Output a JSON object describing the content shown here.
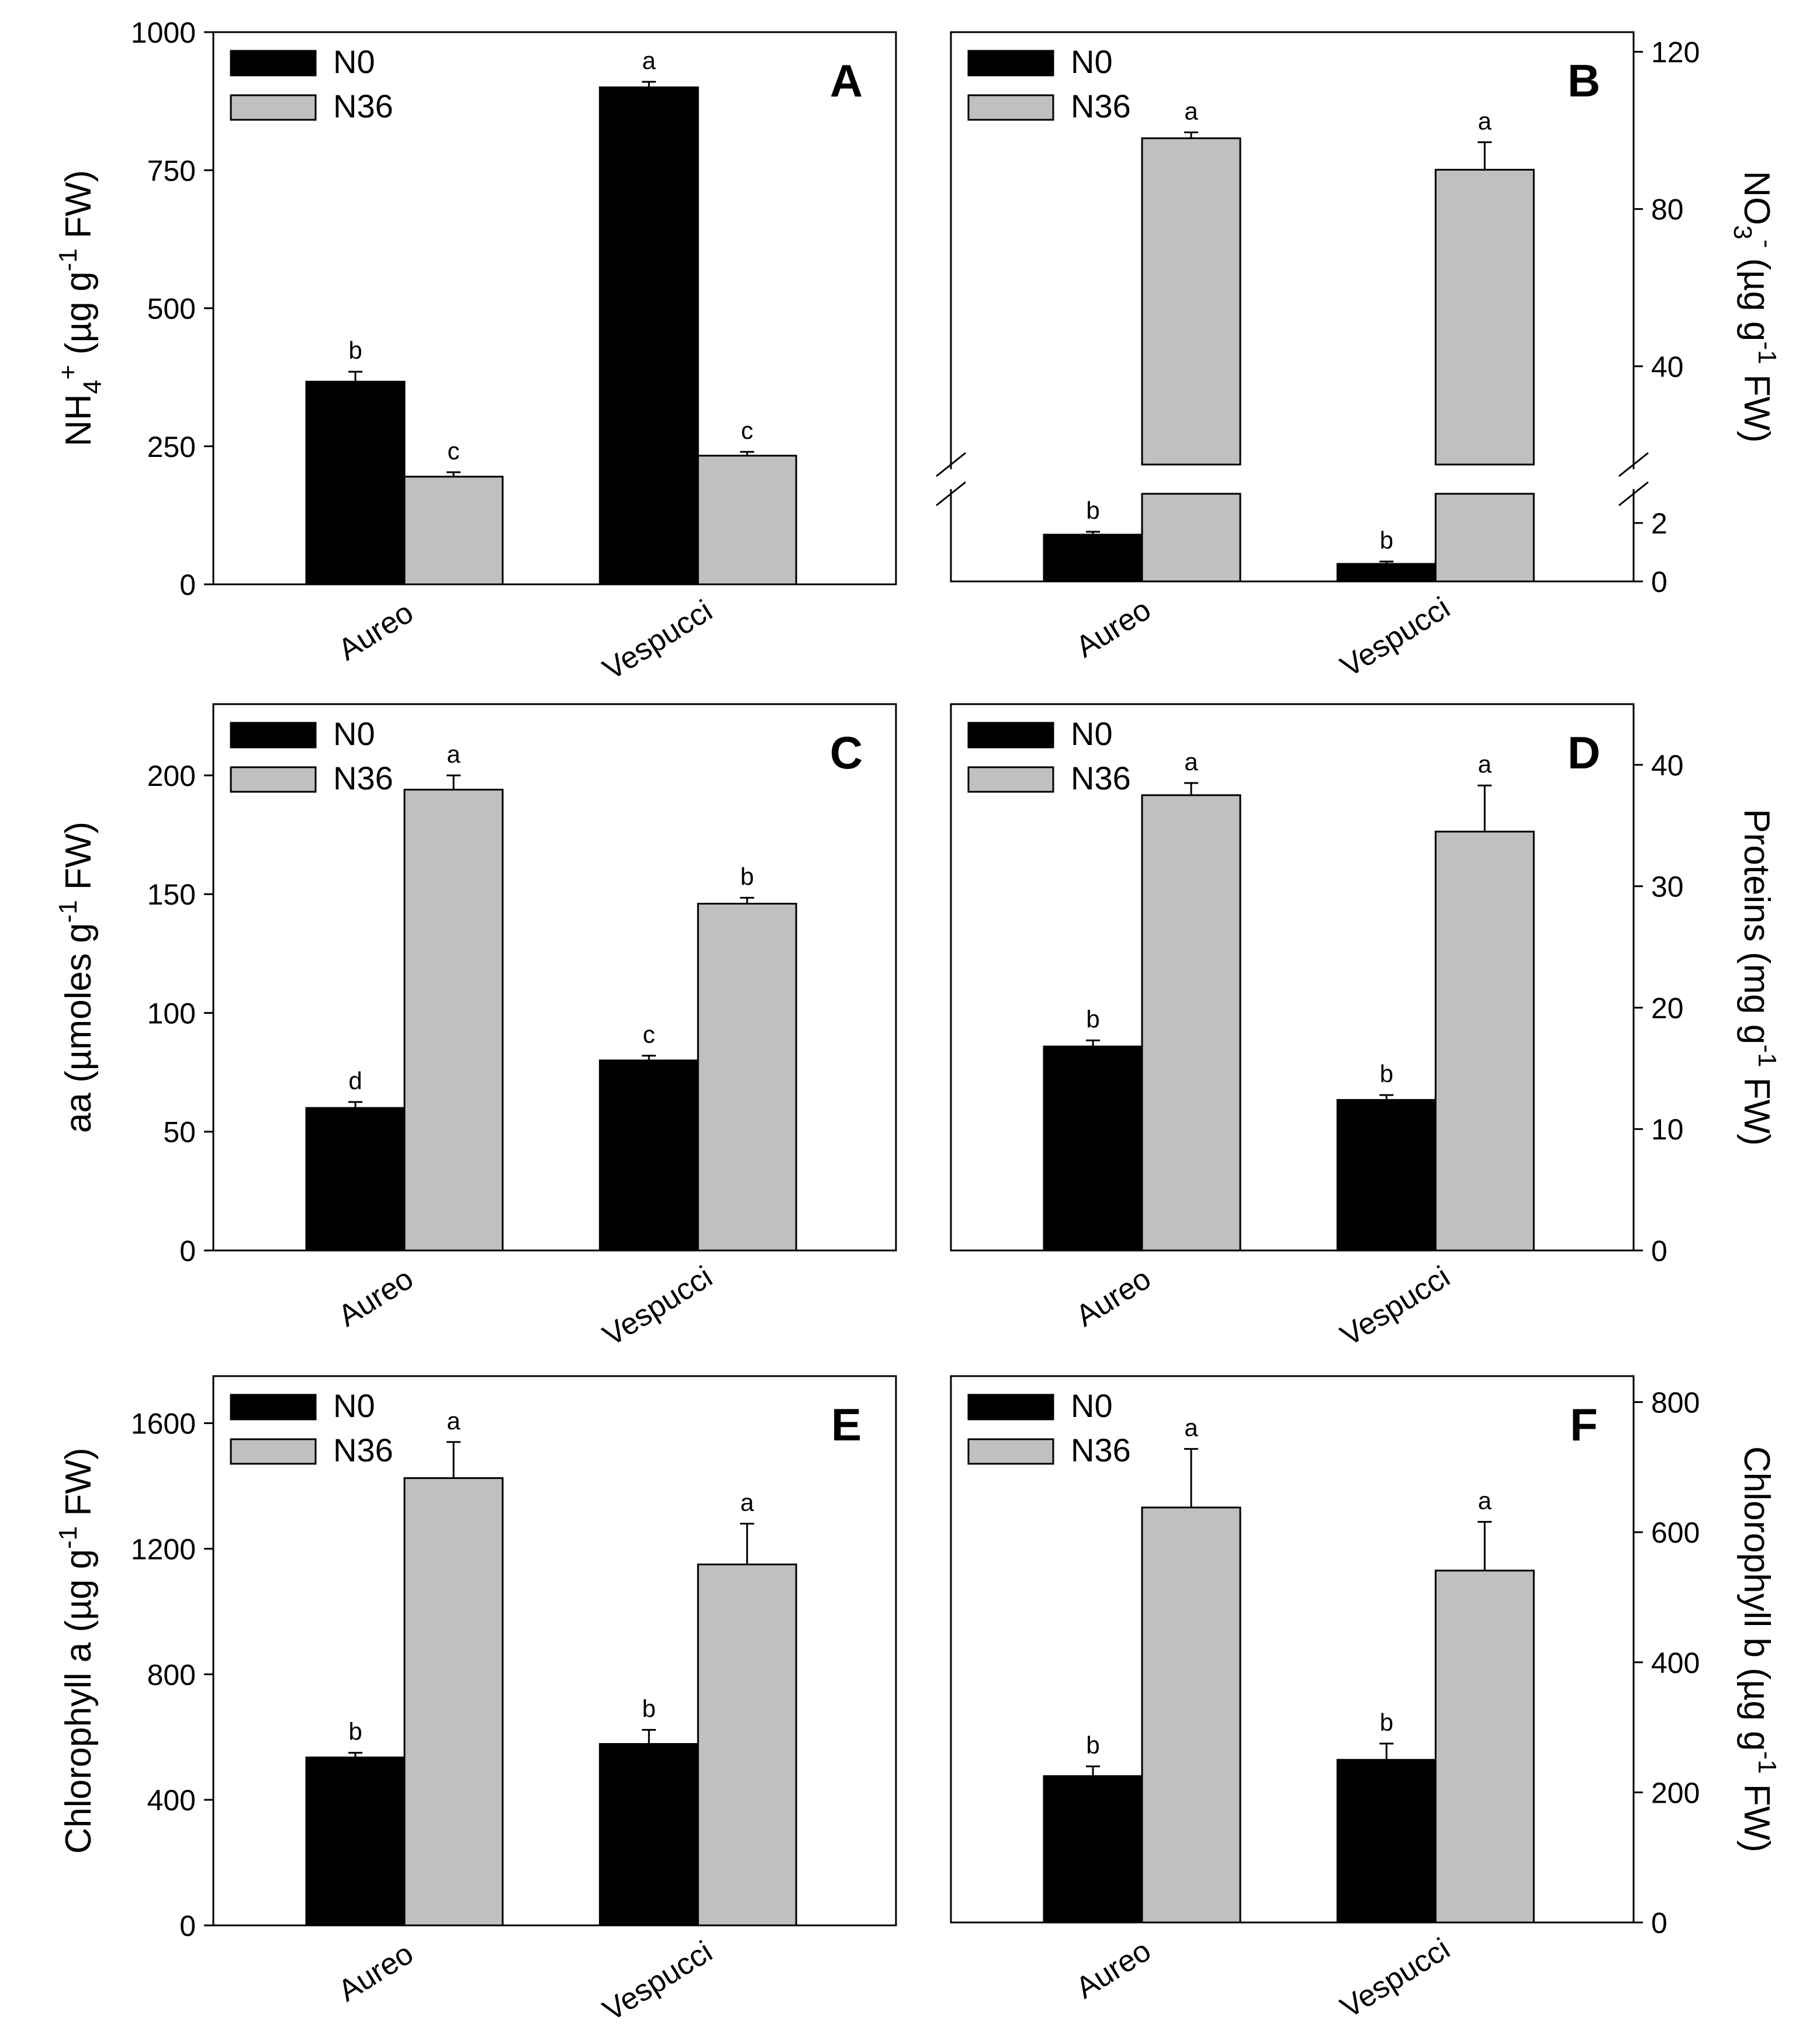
{
  "figure": {
    "panels_count": 6
  },
  "chart_data": [
    {
      "type": "bar",
      "panel": "A",
      "categories": [
        "Aureo",
        "Vespucci"
      ],
      "series": [
        {
          "name": "N0",
          "color": "#000000",
          "values": [
            367,
            900
          ],
          "errors": [
            18,
            10
          ],
          "sig": [
            "b",
            "a"
          ]
        },
        {
          "name": "N36",
          "color": "#c0c0c0",
          "values": [
            195,
            233
          ],
          "errors": [
            8,
            7
          ],
          "sig": [
            "c",
            "c"
          ]
        }
      ],
      "ylabel_main": "NH",
      "ylabel_sub": "4",
      "ylabel_sup": "+",
      "ylabel_rest": " (µg g",
      "ylabel_sup2": "-1",
      "ylabel_end": " FW)",
      "yaxis_side": "left",
      "ylim": [
        0,
        1000
      ],
      "yticks": [
        0,
        250,
        500,
        750,
        1000
      ],
      "ytick_labels": [
        "0",
        "250",
        "500",
        "750",
        "1000"
      ],
      "legend": {
        "n0": "N0",
        "n36": "N36",
        "position": "top-left"
      }
    },
    {
      "type": "bar",
      "panel": "B",
      "categories": [
        "Aureo",
        "Vespucci"
      ],
      "series": [
        {
          "name": "N0",
          "color": "#000000",
          "values": [
            1.6,
            0.6
          ],
          "errors": [
            0.1,
            0.08
          ],
          "sig": [
            "b",
            "b"
          ]
        },
        {
          "name": "N36",
          "color": "#c0c0c0",
          "values": [
            98,
            90
          ],
          "errors": [
            1.5,
            7
          ],
          "sig": [
            "a",
            "a"
          ]
        }
      ],
      "ylabel_main": "NO",
      "ylabel_sub": "3",
      "ylabel_sup": "-",
      "ylabel_rest": " (µg g",
      "ylabel_sup2": "-1",
      "ylabel_end": " FW)",
      "yaxis_side": "right",
      "broken_axis": true,
      "ylim_lower": [
        0,
        3
      ],
      "ylim_upper": [
        15,
        125
      ],
      "yticks_lower": [
        0,
        2
      ],
      "yticks_upper": [
        40,
        80,
        120
      ],
      "ytick_labels_lower": [
        "0",
        "2"
      ],
      "ytick_labels_upper": [
        "40",
        "80",
        "120"
      ],
      "legend": {
        "n0": "N0",
        "n36": "N36",
        "position": "top-left"
      }
    },
    {
      "type": "bar",
      "panel": "C",
      "categories": [
        "Aureo",
        "Vespucci"
      ],
      "series": [
        {
          "name": "N0",
          "color": "#000000",
          "values": [
            60,
            80
          ],
          "errors": [
            2.5,
            2
          ],
          "sig": [
            "d",
            "c"
          ]
        },
        {
          "name": "N36",
          "color": "#c0c0c0",
          "values": [
            194,
            146
          ],
          "errors": [
            6,
            2.5
          ],
          "sig": [
            "a",
            "b"
          ]
        }
      ],
      "ylabel_main": "aa (µmoles g",
      "ylabel_sub": "",
      "ylabel_sup": "-1",
      "ylabel_rest": " FW)",
      "ylabel_sup2": "",
      "ylabel_end": "",
      "yaxis_side": "left",
      "ylim": [
        0,
        230
      ],
      "yticks": [
        0,
        50,
        100,
        150,
        200
      ],
      "ytick_labels": [
        "0",
        "50",
        "100",
        "150",
        "200"
      ],
      "legend": {
        "n0": "N0",
        "n36": "N36",
        "position": "top-left"
      }
    },
    {
      "type": "bar",
      "panel": "D",
      "categories": [
        "Aureo",
        "Vespucci"
      ],
      "series": [
        {
          "name": "N0",
          "color": "#000000",
          "values": [
            16.8,
            12.4
          ],
          "errors": [
            0.5,
            0.4
          ],
          "sig": [
            "b",
            "b"
          ]
        },
        {
          "name": "N36",
          "color": "#c0c0c0",
          "values": [
            37.5,
            34.5
          ],
          "errors": [
            1,
            3.8
          ],
          "sig": [
            "a",
            "a"
          ]
        }
      ],
      "ylabel_main": "Proteins (mg g",
      "ylabel_sub": "",
      "ylabel_sup": "-1",
      "ylabel_rest": " FW)",
      "ylabel_sup2": "",
      "ylabel_end": "",
      "yaxis_side": "right",
      "ylim": [
        0,
        45
      ],
      "yticks": [
        0,
        10,
        20,
        30,
        40
      ],
      "ytick_labels": [
        "0",
        "10",
        "20",
        "30",
        "40"
      ],
      "legend": {
        "n0": "N0",
        "n36": "N36",
        "position": "top-left"
      }
    },
    {
      "type": "bar",
      "panel": "E",
      "categories": [
        "Aureo",
        "Vespucci"
      ],
      "series": [
        {
          "name": "N0",
          "color": "#000000",
          "values": [
            535,
            578
          ],
          "errors": [
            15,
            45
          ],
          "sig": [
            "b",
            "b"
          ]
        },
        {
          "name": "N36",
          "color": "#c0c0c0",
          "values": [
            1425,
            1150
          ],
          "errors": [
            115,
            130
          ],
          "sig": [
            "a",
            "a"
          ]
        }
      ],
      "ylabel_main": "Chlorophyll a (µg g",
      "ylabel_sub": "",
      "ylabel_sup": "-1",
      "ylabel_rest": " FW)",
      "ylabel_sup2": "",
      "ylabel_end": "",
      "yaxis_side": "left",
      "ylim": [
        0,
        1750
      ],
      "yticks": [
        0,
        400,
        800,
        1200,
        1600
      ],
      "ytick_labels": [
        "0",
        "400",
        "800",
        "1200",
        "1600"
      ],
      "legend": {
        "n0": "N0",
        "n36": "N36",
        "position": "top-left"
      }
    },
    {
      "type": "bar",
      "panel": "F",
      "categories": [
        "Aureo",
        "Vespucci"
      ],
      "series": [
        {
          "name": "N0",
          "color": "#000000",
          "values": [
            225,
            250
          ],
          "errors": [
            15,
            25
          ],
          "sig": [
            "b",
            "b"
          ]
        },
        {
          "name": "N36",
          "color": "#c0c0c0",
          "values": [
            638,
            541
          ],
          "errors": [
            90,
            75
          ],
          "sig": [
            "a",
            "a"
          ]
        }
      ],
      "ylabel_main": "Chlorophyll b (µg g",
      "ylabel_sub": "",
      "ylabel_sup": "-1",
      "ylabel_rest": " FW)",
      "ylabel_sup2": "",
      "ylabel_end": "",
      "yaxis_side": "right",
      "ylim": [
        0,
        840
      ],
      "yticks": [
        0,
        200,
        400,
        600,
        800
      ],
      "ytick_labels": [
        "0",
        "200",
        "400",
        "600",
        "800"
      ],
      "legend": {
        "n0": "N0",
        "n36": "N36",
        "position": "top-left"
      }
    }
  ]
}
